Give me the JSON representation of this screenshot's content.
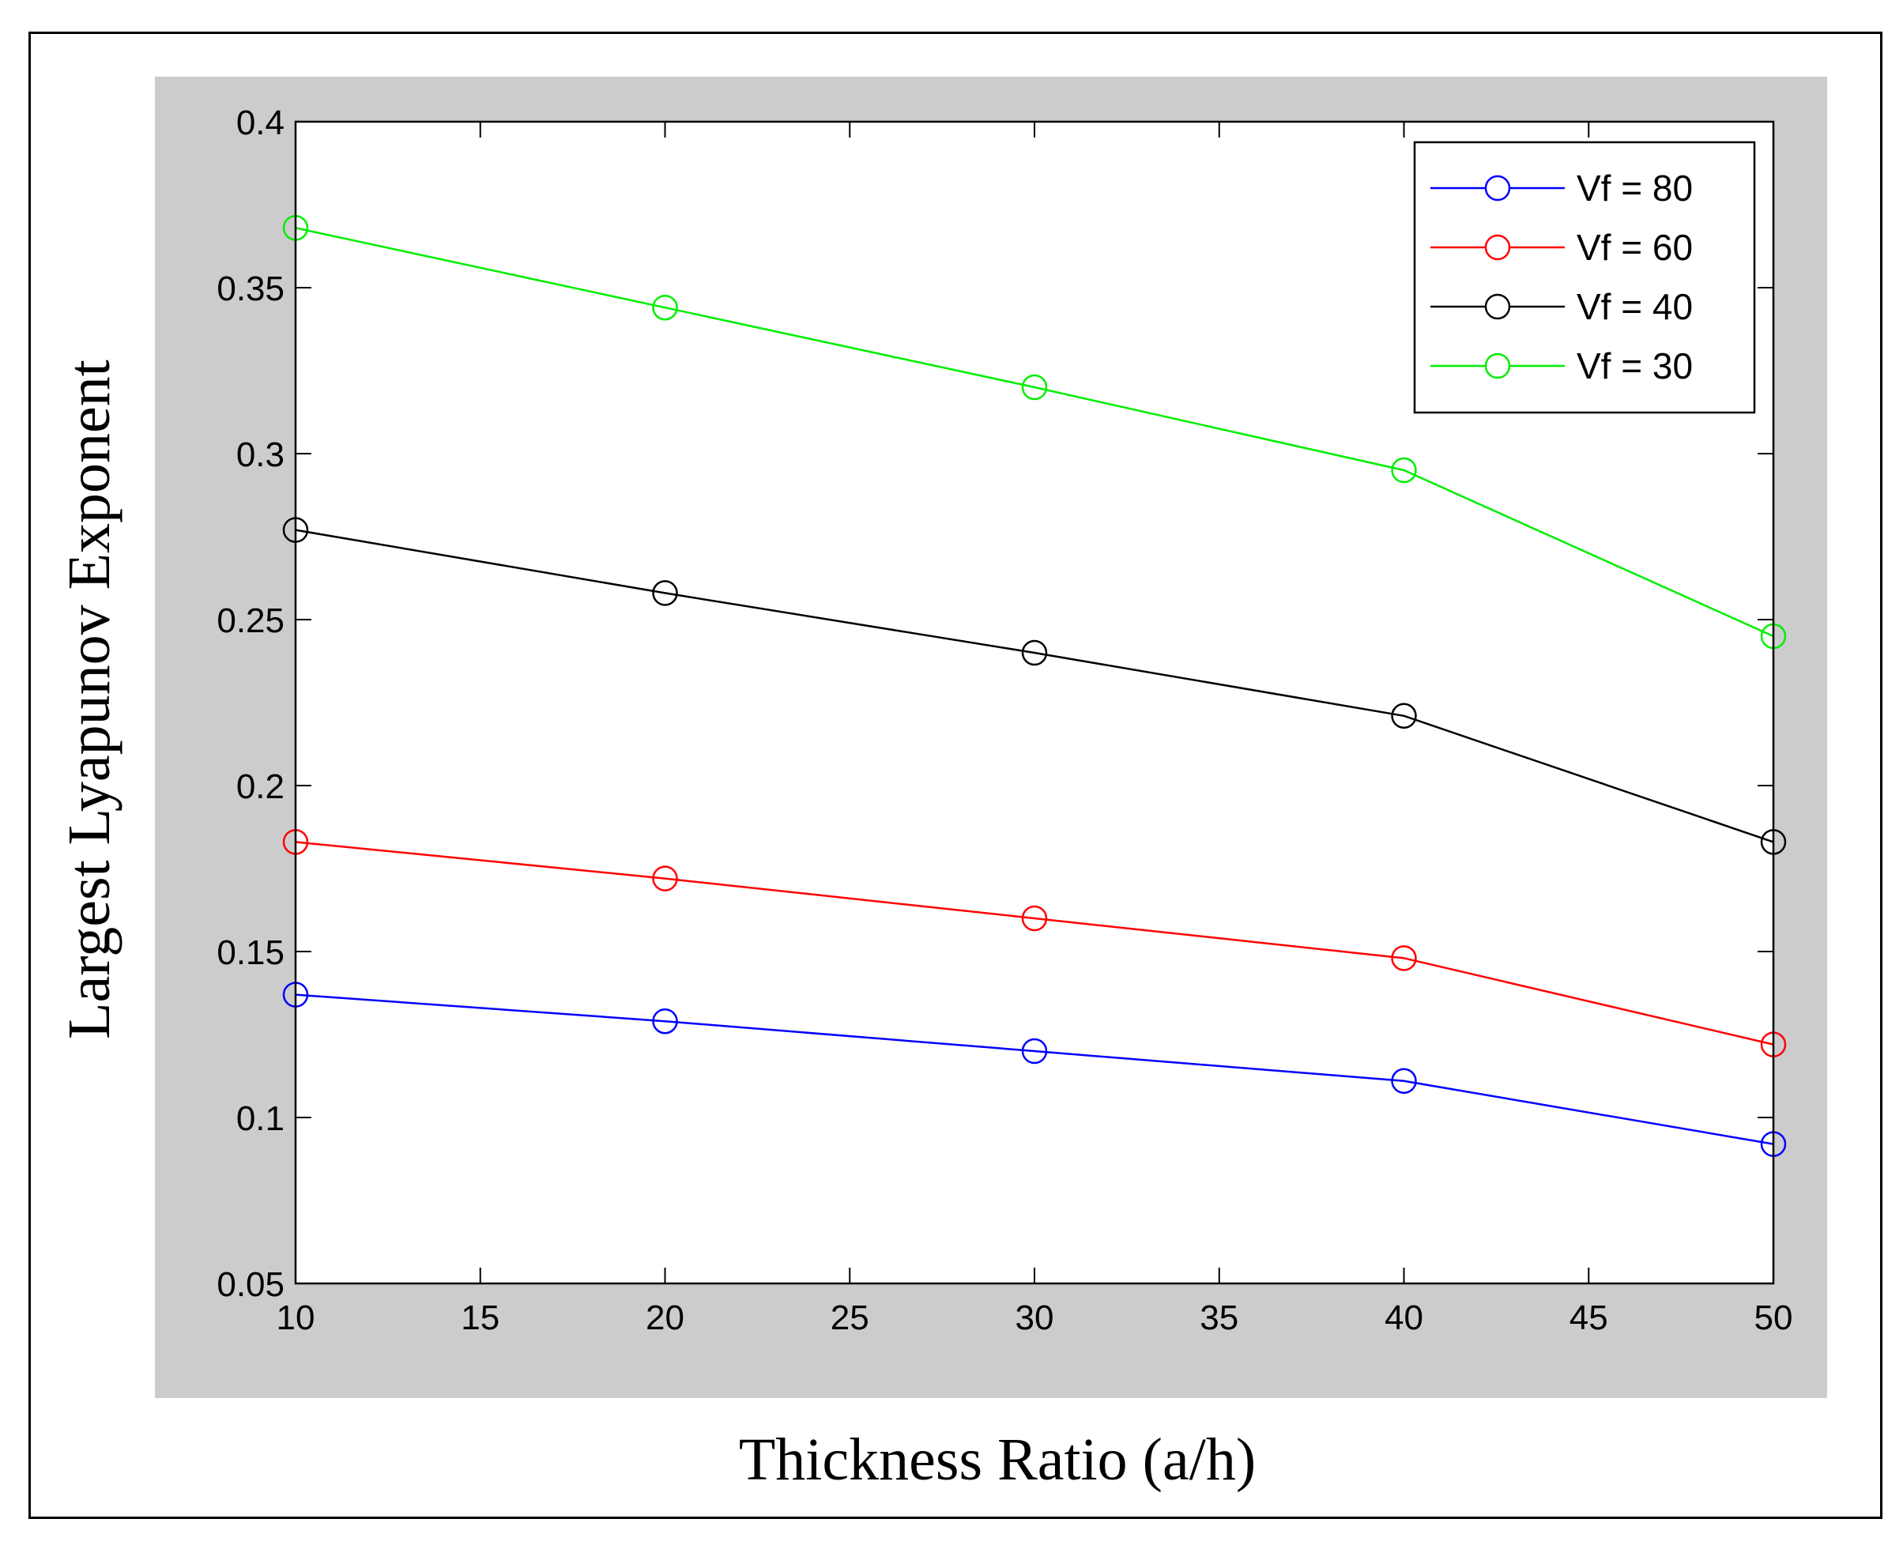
{
  "chart_data": {
    "type": "line",
    "title": "",
    "xlabel": "Thickness Ratio (a/h)",
    "ylabel": "Largest Lyapunov Exponent",
    "xlim": [
      10,
      50
    ],
    "ylim": [
      0.05,
      0.4
    ],
    "xticks": [
      10,
      15,
      20,
      25,
      30,
      35,
      40,
      45,
      50
    ],
    "xtick_labels": [
      "10",
      "15",
      "20",
      "25",
      "30",
      "35",
      "40",
      "45",
      "50"
    ],
    "yticks": [
      0.05,
      0.1,
      0.15,
      0.2,
      0.25,
      0.3,
      0.35,
      0.4
    ],
    "ytick_labels": [
      "0.05",
      "0.1",
      "0.15",
      "0.2",
      "0.25",
      "0.3",
      "0.35",
      "0.4"
    ],
    "grid": false,
    "legend_position": "top-right",
    "x": [
      10,
      20,
      30,
      40,
      50
    ],
    "series": [
      {
        "name": "Vf = 80",
        "color": "#0000ff",
        "marker": "circle",
        "values": [
          0.137,
          0.129,
          0.12,
          0.111,
          0.092
        ]
      },
      {
        "name": "Vf = 60",
        "color": "#ff0000",
        "marker": "circle",
        "values": [
          0.183,
          0.172,
          0.16,
          0.148,
          0.122
        ]
      },
      {
        "name": "Vf = 40",
        "color": "#000000",
        "marker": "circle",
        "values": [
          0.277,
          0.258,
          0.24,
          0.221,
          0.183
        ]
      },
      {
        "name": "Vf = 30",
        "color": "#00ee00",
        "marker": "circle",
        "values": [
          0.368,
          0.344,
          0.32,
          0.295,
          0.245
        ]
      }
    ]
  },
  "colors": {
    "figure_background": "#cccccc",
    "axes_background": "#ffffff",
    "axis_color": "#000000"
  }
}
